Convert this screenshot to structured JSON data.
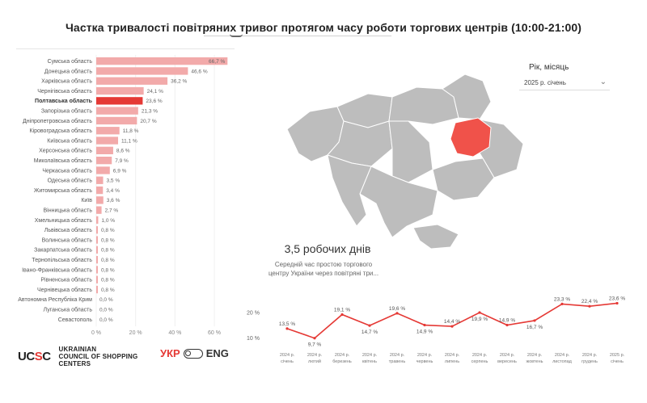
{
  "title": "Частка тривалості повітряних тривог протягом часу роботи торгових центрів (10:00-21:00)",
  "filter": {
    "label": "Рік, місяць",
    "value": "2025 р. січень"
  },
  "kpi": {
    "value": "3,5 робочих днів",
    "description_line1": "Середній час простою торгового",
    "description_line2": "центру України через повітряні три..."
  },
  "brand": {
    "logo": "UCSC",
    "line1": "UKRAINIAN",
    "line2": "COUNCIL OF SHOPPING",
    "line3": "CENTERS"
  },
  "language": {
    "ukr": "УКР",
    "eng": "ENG"
  },
  "colors": {
    "highlight": "#e53935",
    "bar": "#f2aaaa",
    "map_region": "#bdbdbd",
    "map_highlight": "#f0524a",
    "line": "#e53935"
  },
  "chart_data": [
    {
      "type": "bar",
      "orientation": "horizontal",
      "categories": [
        "Сумська область",
        "Донецька область",
        "Харківська область",
        "Чернігівська область",
        "Полтавська область",
        "Запорізька область",
        "Дніпропетровська область",
        "Кіровоградська область",
        "Київська область",
        "Херсонська область",
        "Миколаївська область",
        "Черкаська область",
        "Одеська область",
        "Житомирська область",
        "Київ",
        "Вінницька область",
        "Хмельницька область",
        "Львівська область",
        "Волинська область",
        "Закарпатська область",
        "Тернопільська область",
        "Івано-Франківська область",
        "Рівненська область",
        "Чернівецька область",
        "Автономна Республіка Крим",
        "Луганська область",
        "Севастополь"
      ],
      "values": [
        66.7,
        46.6,
        36.2,
        24.1,
        23.6,
        21.3,
        20.7,
        11.8,
        11.1,
        8.6,
        7.9,
        6.9,
        3.5,
        3.4,
        3.6,
        2.7,
        1.0,
        0.8,
        0.8,
        0.8,
        0.8,
        0.8,
        0.8,
        0.8,
        0.0,
        0.0,
        0.0
      ],
      "value_labels": [
        "66,7 %",
        "46,6 %",
        "36,2 %",
        "24,1 %",
        "23,6 %",
        "21,3 %",
        "20,7 %",
        "11,8 %",
        "11,1 %",
        "8,6 %",
        "7,9 %",
        "6,9 %",
        "3,5 %",
        "3,4 %",
        "3,6 %",
        "2,7 %",
        "1,0 %",
        "0,8 %",
        "0,8 %",
        "0,8 %",
        "0,8 %",
        "0,8 %",
        "0,8 %",
        "0,8 %",
        "0,0 %",
        "0,0 %",
        "0,0 %"
      ],
      "highlight": "Полтавська область",
      "xlim": [
        0,
        60
      ],
      "xticks": [
        "0 %",
        "20 %",
        "40 %",
        "60 %"
      ]
    },
    {
      "type": "line",
      "x": [
        "2024 р. січень",
        "2024 р. лютий",
        "2024 р. березень",
        "2024 р. квітень",
        "2024 р. травень",
        "2024 р. червень",
        "2024 р. липень",
        "2024 р. серпень",
        "2024 р. вересень",
        "2024 р. жовтень",
        "2024 р. листопад",
        "2024 р. грудень",
        "2025 р. січень"
      ],
      "x_labels": [
        [
          "2024 р.",
          "січень"
        ],
        [
          "2024 р.",
          "лютий"
        ],
        [
          "2024 р.",
          "березень"
        ],
        [
          "2024 р.",
          "квітень"
        ],
        [
          "2024 р.",
          "травень"
        ],
        [
          "2024 р.",
          "червень"
        ],
        [
          "2024 р.",
          "липень"
        ],
        [
          "2024 р.",
          "серпень"
        ],
        [
          "2024 р.",
          "вересень"
        ],
        [
          "2024 р.",
          "жовтень"
        ],
        [
          "2024 р.",
          "листопад"
        ],
        [
          "2024 р.",
          "грудень"
        ],
        [
          "2025 р.",
          "січень"
        ]
      ],
      "values": [
        13.5,
        9.7,
        19.1,
        14.7,
        19.6,
        14.9,
        14.4,
        19.9,
        14.9,
        16.7,
        23.3,
        22.4,
        23.6
      ],
      "value_labels": [
        "13,5 %",
        "9,7 %",
        "19,1 %",
        "14,7 %",
        "19,6 %",
        "14,9 %",
        "14,4 %",
        "19,9 %",
        "14,9 %",
        "16,7 %",
        "23,3 %",
        "22,4 %",
        "23,6 %"
      ],
      "yticks": [
        "10 %",
        "20 %"
      ],
      "ylim": [
        8,
        26
      ]
    }
  ]
}
